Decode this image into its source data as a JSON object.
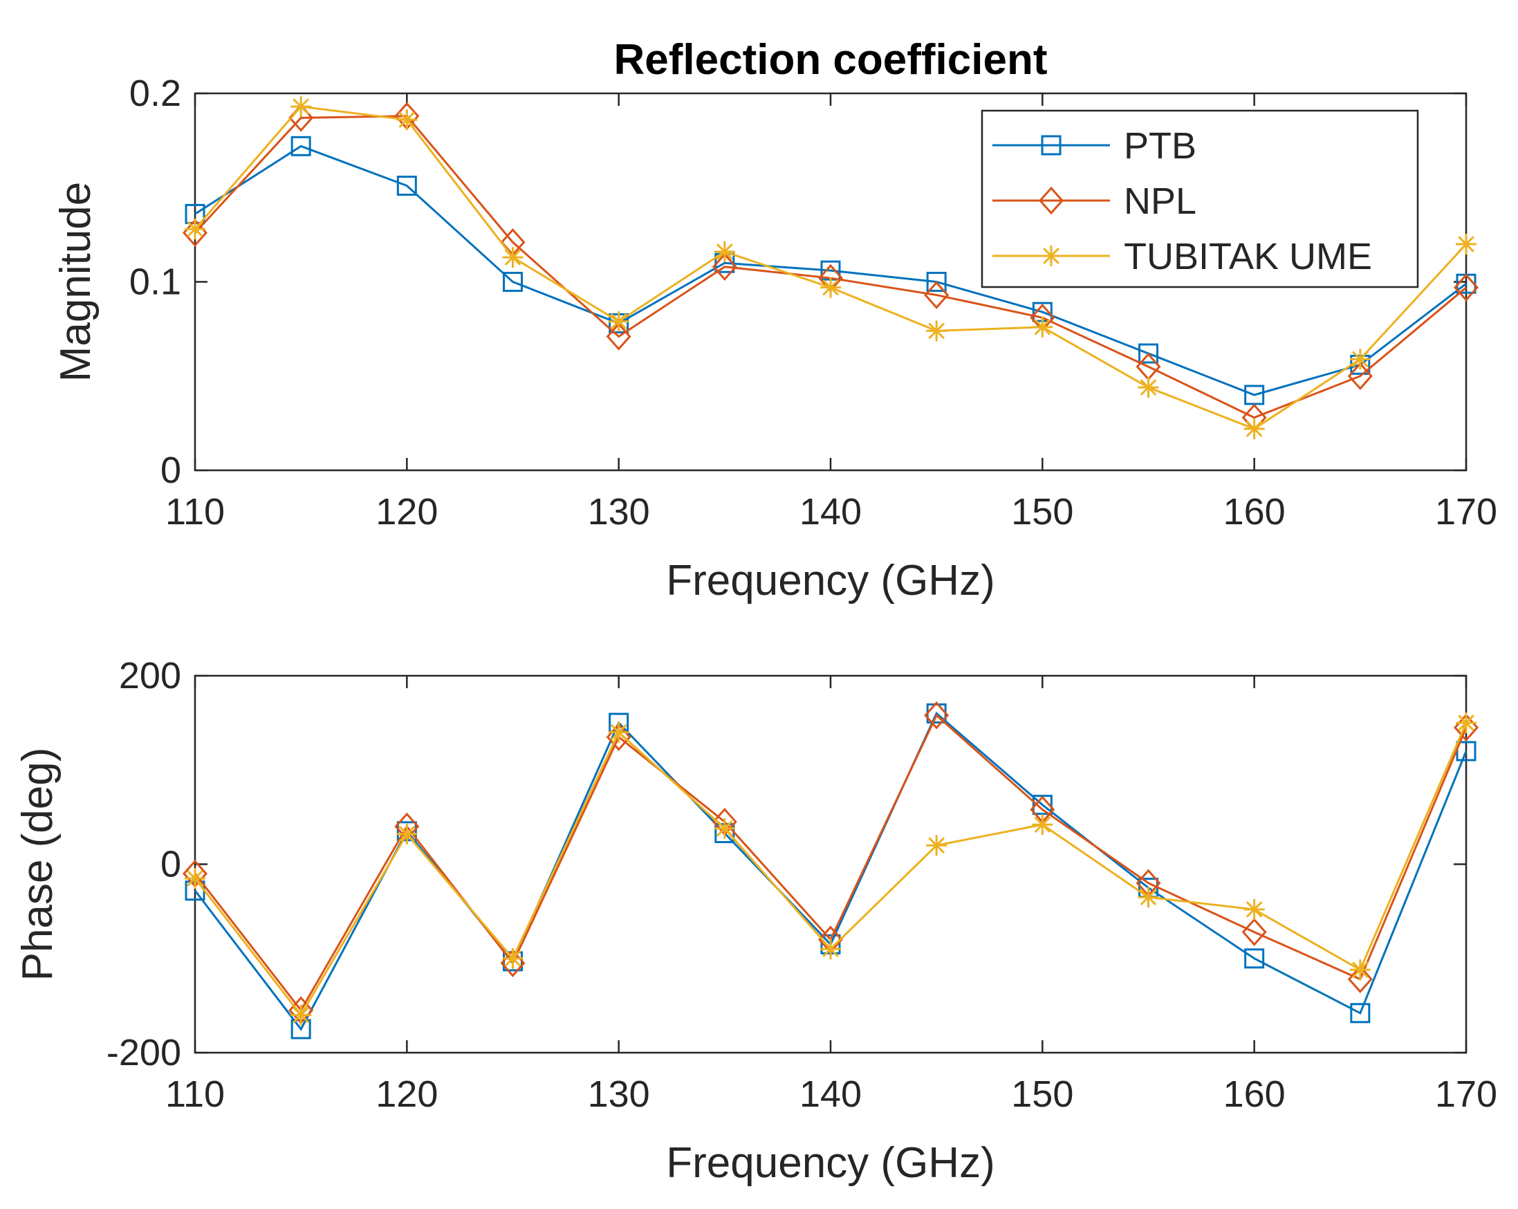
{
  "chart_data": [
    {
      "type": "line",
      "title": "Reflection coefficient",
      "xlabel": "Frequency (GHz)",
      "ylabel": "Magnitude",
      "xlim": [
        110,
        170
      ],
      "ylim": [
        0,
        0.2
      ],
      "xticks": [
        "110",
        "120",
        "130",
        "140",
        "150",
        "160",
        "170"
      ],
      "yticks": [
        "0",
        "0.1",
        "0.2"
      ],
      "grid": false,
      "legend": "top-right",
      "x": [
        110,
        115,
        120,
        125,
        130,
        135,
        140,
        145,
        150,
        155,
        160,
        165,
        170
      ],
      "series": [
        {
          "name": "PTB",
          "color": "#0072BD",
          "marker": "square",
          "values": [
            0.136,
            0.172,
            0.151,
            0.1,
            0.078,
            0.11,
            0.106,
            0.1,
            0.084,
            0.062,
            0.04,
            0.056,
            0.099
          ]
        },
        {
          "name": "NPL",
          "color": "#D95319",
          "marker": "diamond",
          "values": [
            0.126,
            0.187,
            0.188,
            0.121,
            0.071,
            0.108,
            0.102,
            0.093,
            0.081,
            0.055,
            0.028,
            0.05,
            0.097
          ]
        },
        {
          "name": "TUBITAK UME",
          "color": "#EDB120",
          "marker": "asterisk",
          "values": [
            0.128,
            0.193,
            0.186,
            0.113,
            0.079,
            0.116,
            0.097,
            0.074,
            0.076,
            0.044,
            0.022,
            0.059,
            0.12
          ]
        }
      ]
    },
    {
      "type": "line",
      "title": "",
      "xlabel": "Frequency (GHz)",
      "ylabel": "Phase (deg)",
      "xlim": [
        110,
        170
      ],
      "ylim": [
        -200,
        200
      ],
      "xticks": [
        "110",
        "120",
        "130",
        "140",
        "150",
        "160",
        "170"
      ],
      "yticks": [
        "-200",
        "0",
        "200"
      ],
      "grid": false,
      "legend": "none",
      "x": [
        110,
        115,
        120,
        125,
        130,
        135,
        140,
        145,
        150,
        155,
        160,
        165,
        170
      ],
      "series": [
        {
          "name": "PTB",
          "color": "#0072BD",
          "marker": "square",
          "values": [
            -28,
            -175,
            35,
            -103,
            150,
            33,
            -85,
            160,
            63,
            -25,
            -100,
            -158,
            120
          ]
        },
        {
          "name": "NPL",
          "color": "#D95319",
          "marker": "diamond",
          "values": [
            -10,
            -155,
            40,
            -105,
            135,
            45,
            -80,
            158,
            58,
            -20,
            -72,
            -122,
            145
          ]
        },
        {
          "name": "TUBITAK UME",
          "color": "#EDB120",
          "marker": "asterisk",
          "values": [
            -15,
            -160,
            32,
            -100,
            140,
            38,
            -90,
            20,
            42,
            -35,
            -48,
            -112,
            150
          ]
        }
      ]
    }
  ]
}
